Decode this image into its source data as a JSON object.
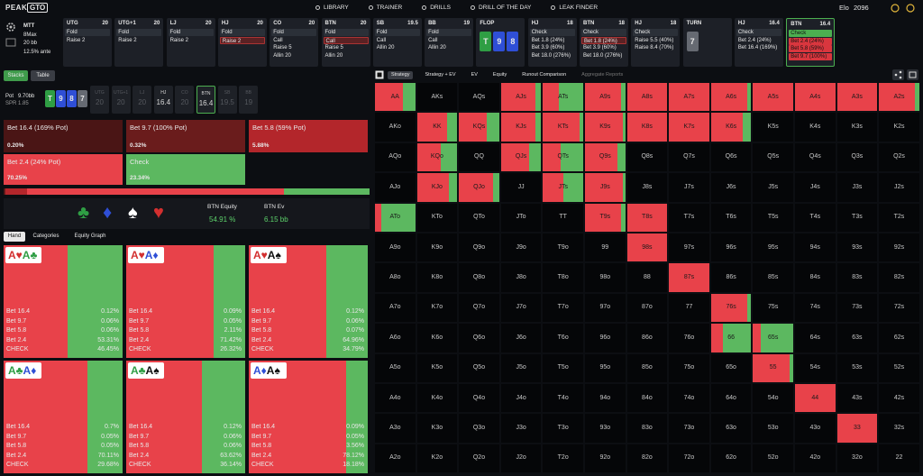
{
  "nav": {
    "logo_a": "PEAK",
    "logo_b": "GTO",
    "links": [
      "LIBRARY",
      "TRAINER",
      "DRILLS",
      "DRILL OF THE DAY",
      "LEAK FINDER"
    ],
    "elo_label": "Elo",
    "elo": 2096
  },
  "settings": [
    "MTT",
    "8Max",
    "20 bb",
    "12.5% ante"
  ],
  "actions": [
    {
      "pos": "UTG",
      "stack": 20,
      "options": [
        "Fold",
        "Raise 2"
      ]
    },
    {
      "pos": "UTG+1",
      "stack": 20,
      "options": [
        "Fold",
        "Raise 2"
      ]
    },
    {
      "pos": "LJ",
      "stack": 20,
      "options": [
        "Fold",
        "Raise 2"
      ]
    },
    {
      "pos": "HJ",
      "stack": 20,
      "options": [
        "Fold",
        "Raise 2"
      ],
      "selected": 1
    },
    {
      "pos": "CO",
      "stack": 20,
      "options": [
        "Fold",
        "Call",
        "Raise 5",
        "Allin 20"
      ]
    },
    {
      "pos": "BTN",
      "stack": 20,
      "options": [
        "Fold",
        "Call",
        "Raise 5",
        "Allin 20"
      ],
      "selected": 1
    },
    {
      "pos": "SB",
      "stack": 19.5,
      "options": [
        "Fold",
        "Call",
        "Allin 20"
      ]
    },
    {
      "pos": "BB",
      "stack": 19,
      "options": [
        "Fold",
        "Call",
        "Allin 20"
      ]
    },
    {
      "pos": "FLOP",
      "cards": [
        {
          "rank": "T",
          "color": "#2f9e44"
        },
        {
          "rank": "9",
          "color": "#2f4fd6"
        },
        {
          "rank": "8",
          "color": "#2f4fd6"
        }
      ]
    },
    {
      "pos": "HJ",
      "stack": 18,
      "options": [
        "Check",
        "Bet 1.8 (24%)",
        "Bet 3.9 (60%)",
        "Bet 18.0 (276%)"
      ]
    },
    {
      "pos": "BTN",
      "stack": 18,
      "options": [
        "Check",
        "Bet 1.8 (24%)",
        "Bet 3.9 (60%)",
        "Bet 18.0 (276%)"
      ],
      "selected": 1
    },
    {
      "pos": "HJ",
      "stack": 18,
      "options": [
        "Check",
        "Raise 5.5 (40%)",
        "Raise 8.4 (70%)"
      ]
    },
    {
      "pos": "TURN",
      "cards": [
        {
          "rank": "7",
          "color": "#666a72"
        }
      ]
    },
    {
      "pos": "HJ",
      "stack": 16.4,
      "options": [
        "Check",
        "Bet 2.4 (24%)",
        "Bet 16.4 (169%)"
      ]
    },
    {
      "pos": "BTN",
      "stack": 16.4,
      "options": [
        "Check",
        "Bet 2.4 (24%)",
        "Bet 5.8 (59%)",
        "Bet 9.7 (100%)"
      ],
      "active": true,
      "option_colors": [
        "#4caf50",
        "#d9363e",
        "#d9363e",
        "#d9363e"
      ]
    }
  ],
  "left": {
    "tabs": [
      "Stacks",
      "Table"
    ],
    "pot_label": "Pot",
    "pot": "9.70bb",
    "spr": "SPR 1.85",
    "board": [
      {
        "rank": "T",
        "color": "#2f9e44"
      },
      {
        "rank": "9",
        "color": "#2f4fd6"
      },
      {
        "rank": "8",
        "color": "#2f4fd6"
      },
      {
        "rank": "7",
        "color": "#666a72"
      }
    ],
    "seats": [
      {
        "pos": "UTG",
        "stack": 20,
        "folded": true
      },
      {
        "pos": "UTG+1",
        "stack": 20,
        "folded": true
      },
      {
        "pos": "LJ",
        "stack": 20,
        "folded": true
      },
      {
        "pos": "HJ",
        "stack": 16.4,
        "folded": false
      },
      {
        "pos": "CO",
        "stack": 20,
        "folded": true
      },
      {
        "pos": "BTN",
        "stack": 16.4,
        "folded": false,
        "selected": true
      },
      {
        "pos": "SB",
        "stack": 19.5,
        "folded": true
      },
      {
        "pos": "BB",
        "stack": 19,
        "folded": true
      }
    ]
  },
  "strategy": [
    {
      "label": "Bet 16.4 (169% Pot)",
      "freq": {
        "value": 0.2,
        "label": "0.20%"
      },
      "color": "#4a1515"
    },
    {
      "label": "Bet 9.7 (100% Pot)",
      "freq": {
        "value": 0.32,
        "label": "0.32%"
      },
      "color": "#6a1c1c"
    },
    {
      "label": "Bet 5.8 (59% Pot)",
      "freq": {
        "value": 5.88,
        "label": "5.88%"
      },
      "color": "#b3262b"
    },
    {
      "label": "Bet 2.4 (24% Pot)",
      "freq": {
        "value": 70.25,
        "label": "70.25%"
      },
      "color": "#e8424a"
    },
    {
      "label": "Check",
      "freq": {
        "value": 23.34,
        "label": "23.34%"
      },
      "color": "#5cb860"
    }
  ],
  "equity": {
    "suits": [
      "♣",
      "♦",
      "♠",
      "♥"
    ],
    "equity_label": "BTN Equity",
    "equity": "54.91 %",
    "ev_label": "BTN Ev",
    "ev": "6.15 bb"
  },
  "suit_colors": {
    "♥": "#d32f2f",
    "♦": "#2f4fd6",
    "♣": "#2f9e44",
    "♠": "#111111"
  },
  "hand_tabs": [
    "Hand",
    "Categories",
    "Equity Graph"
  ],
  "hands": [
    {
      "cards": [
        {
          "rank": "A",
          "suit": "♥"
        },
        {
          "rank": "A",
          "suit": "♣"
        }
      ],
      "rows": [
        {
          "label": "Bet 16.4",
          "freq": {
            "value": 0.12,
            "label": "0.12%"
          }
        },
        {
          "label": "Bet 9.7",
          "freq": {
            "value": 0.06,
            "label": "0.06%"
          }
        },
        {
          "label": "Bet 5.8",
          "freq": {
            "value": 0.06,
            "label": "0.06%"
          }
        },
        {
          "label": "Bet 2.4",
          "freq": {
            "value": 53.31,
            "label": "53.31%"
          }
        },
        {
          "label": "CHECK",
          "freq": {
            "value": 46.45,
            "label": "46.45%"
          }
        }
      ]
    },
    {
      "cards": [
        {
          "rank": "A",
          "suit": "♥"
        },
        {
          "rank": "A",
          "suit": "♦"
        }
      ],
      "rows": [
        {
          "label": "Bet 16.4",
          "freq": {
            "value": 0.09,
            "label": "0.09%"
          }
        },
        {
          "label": "Bet 9.7",
          "freq": {
            "value": 0.05,
            "label": "0.05%"
          }
        },
        {
          "label": "Bet 5.8",
          "freq": {
            "value": 2.11,
            "label": "2.11%"
          }
        },
        {
          "label": "Bet 2.4",
          "freq": {
            "value": 71.42,
            "label": "71.42%"
          }
        },
        {
          "label": "CHECK",
          "freq": {
            "value": 26.32,
            "label": "26.32%"
          }
        }
      ]
    },
    {
      "cards": [
        {
          "rank": "A",
          "suit": "♥"
        },
        {
          "rank": "A",
          "suit": "♠"
        }
      ],
      "rows": [
        {
          "label": "Bet 16.4",
          "freq": {
            "value": 0.12,
            "label": "0.12%"
          }
        },
        {
          "label": "Bet 9.7",
          "freq": {
            "value": 0.06,
            "label": "0.06%"
          }
        },
        {
          "label": "Bet 5.8",
          "freq": {
            "value": 0.07,
            "label": "0.07%"
          }
        },
        {
          "label": "Bet 2.4",
          "freq": {
            "value": 64.96,
            "label": "64.96%"
          }
        },
        {
          "label": "CHECK",
          "freq": {
            "value": 34.79,
            "label": "34.79%"
          }
        }
      ]
    },
    {
      "cards": [
        {
          "rank": "A",
          "suit": "♣"
        },
        {
          "rank": "A",
          "suit": "♦"
        }
      ],
      "rows": [
        {
          "label": "Bet 16.4",
          "freq": {
            "value": 0.7,
            "label": "0.7%"
          }
        },
        {
          "label": "Bet 9.7",
          "freq": {
            "value": 0.05,
            "label": "0.05%"
          }
        },
        {
          "label": "Bet 5.8",
          "freq": {
            "value": 0.05,
            "label": "0.05%"
          }
        },
        {
          "label": "Bet 2.4",
          "freq": {
            "value": 70.11,
            "label": "70.11%"
          }
        },
        {
          "label": "CHECK",
          "freq": {
            "value": 29.68,
            "label": "29.68%"
          }
        }
      ]
    },
    {
      "cards": [
        {
          "rank": "A",
          "suit": "♣"
        },
        {
          "rank": "A",
          "suit": "♠"
        }
      ],
      "rows": [
        {
          "label": "Bet 16.4",
          "freq": {
            "value": 0.12,
            "label": "0.12%"
          }
        },
        {
          "label": "Bet 9.7",
          "freq": {
            "value": 0.06,
            "label": "0.06%"
          }
        },
        {
          "label": "Bet 5.8",
          "freq": {
            "value": 0.06,
            "label": "0.06%"
          }
        },
        {
          "label": "Bet 2.4",
          "freq": {
            "value": 63.62,
            "label": "63.62%"
          }
        },
        {
          "label": "CHECK",
          "freq": {
            "value": 36.14,
            "label": "36.14%"
          }
        }
      ]
    },
    {
      "cards": [
        {
          "rank": "A",
          "suit": "♦"
        },
        {
          "rank": "A",
          "suit": "♠"
        }
      ],
      "rows": [
        {
          "label": "Bet 16.4",
          "freq": {
            "value": 0.09,
            "label": "0.09%"
          }
        },
        {
          "label": "Bet 9.7",
          "freq": {
            "value": 0.05,
            "label": "0.05%"
          }
        },
        {
          "label": "Bet 5.8",
          "freq": {
            "value": 3.56,
            "label": "3.56%"
          }
        },
        {
          "label": "Bet 2.4",
          "freq": {
            "value": 78.12,
            "label": "78.12%"
          }
        },
        {
          "label": "CHECK",
          "freq": {
            "value": 18.18,
            "label": "18.18%"
          }
        }
      ]
    }
  ],
  "grid_tabs": [
    "Strategy",
    "Strategy + EV",
    "EV",
    "Equity",
    "Runout Comparison",
    "Aggregate Reports"
  ],
  "grid": {
    "bet_color": "#e8424a",
    "check_color": "#5cb860",
    "rows": [
      [
        "AA",
        "AKs",
        "AQs",
        "AJs",
        "ATs",
        "A9s",
        "A8s",
        "A7s",
        "A6s",
        "A5s",
        "A4s",
        "A3s",
        "A2s"
      ],
      [
        "AKo",
        "KK",
        "KQs",
        "KJs",
        "KTs",
        "K9s",
        "K8s",
        "K7s",
        "K6s",
        "K5s",
        "K4s",
        "K3s",
        "K2s"
      ],
      [
        "AQo",
        "KQo",
        "QQ",
        "QJs",
        "QTs",
        "Q9s",
        "Q8s",
        "Q7s",
        "Q6s",
        "Q5s",
        "Q4s",
        "Q3s",
        "Q2s"
      ],
      [
        "AJo",
        "KJo",
        "QJo",
        "JJ",
        "JTs",
        "J9s",
        "J8s",
        "J7s",
        "J6s",
        "J5s",
        "J4s",
        "J3s",
        "J2s"
      ],
      [
        "ATo",
        "KTo",
        "QTo",
        "JTo",
        "TT",
        "T9s",
        "T8s",
        "T7s",
        "T6s",
        "T5s",
        "T4s",
        "T3s",
        "T2s"
      ],
      [
        "A9o",
        "K9o",
        "Q9o",
        "J9o",
        "T9o",
        "99",
        "98s",
        "97s",
        "96s",
        "95s",
        "94s",
        "93s",
        "92s"
      ],
      [
        "A8o",
        "K8o",
        "Q8o",
        "J8o",
        "T8o",
        "98o",
        "88",
        "87s",
        "86s",
        "85s",
        "84s",
        "83s",
        "82s"
      ],
      [
        "A7o",
        "K7o",
        "Q7o",
        "J7o",
        "T7o",
        "97o",
        "87o",
        "77",
        "76s",
        "75s",
        "74s",
        "73s",
        "72s"
      ],
      [
        "A6o",
        "K6o",
        "Q6o",
        "J6o",
        "T6o",
        "96o",
        "86o",
        "76o",
        "66",
        "65s",
        "64s",
        "63s",
        "62s"
      ],
      [
        "A5o",
        "K5o",
        "Q5o",
        "J5o",
        "T5o",
        "95o",
        "85o",
        "75o",
        "65o",
        "55",
        "54s",
        "53s",
        "52s"
      ],
      [
        "A4o",
        "K4o",
        "Q4o",
        "J4o",
        "T4o",
        "94o",
        "84o",
        "74o",
        "64o",
        "54o",
        "44",
        "43s",
        "42s"
      ],
      [
        "A3o",
        "K3o",
        "Q3o",
        "J3o",
        "T3o",
        "93o",
        "83o",
        "73o",
        "63o",
        "53o",
        "43o",
        "33",
        "32s"
      ],
      [
        "A2o",
        "K2o",
        "Q2o",
        "J2o",
        "T2o",
        "92o",
        "82o",
        "72o",
        "62o",
        "52o",
        "42o",
        "32o",
        "22"
      ]
    ],
    "check": [
      [
        30,
        null,
        null,
        15,
        60,
        10,
        0,
        0,
        10,
        0,
        0,
        0,
        10
      ],
      [
        null,
        25,
        30,
        15,
        10,
        5,
        0,
        0,
        20,
        null,
        null,
        null,
        null
      ],
      [
        null,
        40,
        null,
        30,
        55,
        20,
        null,
        null,
        null,
        null,
        null,
        null,
        null
      ],
      [
        null,
        20,
        15,
        null,
        50,
        5,
        null,
        null,
        null,
        null,
        null,
        null,
        null
      ],
      [
        85,
        null,
        null,
        null,
        null,
        10,
        0,
        null,
        null,
        null,
        null,
        null,
        null
      ],
      [
        null,
        null,
        null,
        null,
        null,
        null,
        0,
        null,
        null,
        null,
        null,
        null,
        null
      ],
      [
        null,
        null,
        null,
        null,
        null,
        null,
        null,
        0,
        null,
        null,
        null,
        null,
        null
      ],
      [
        null,
        null,
        null,
        null,
        null,
        null,
        null,
        null,
        10,
        null,
        null,
        null,
        null
      ],
      [
        null,
        null,
        null,
        null,
        null,
        null,
        null,
        null,
        70,
        80,
        null,
        null,
        null
      ],
      [
        null,
        null,
        null,
        null,
        null,
        null,
        null,
        null,
        null,
        10,
        null,
        null,
        null
      ],
      [
        null,
        null,
        null,
        null,
        null,
        null,
        null,
        null,
        null,
        null,
        0,
        null,
        null
      ],
      [
        null,
        null,
        null,
        null,
        null,
        null,
        null,
        null,
        null,
        null,
        null,
        0,
        null
      ],
      [
        null,
        null,
        null,
        null,
        null,
        null,
        null,
        null,
        null,
        null,
        null,
        null,
        null
      ]
    ]
  }
}
